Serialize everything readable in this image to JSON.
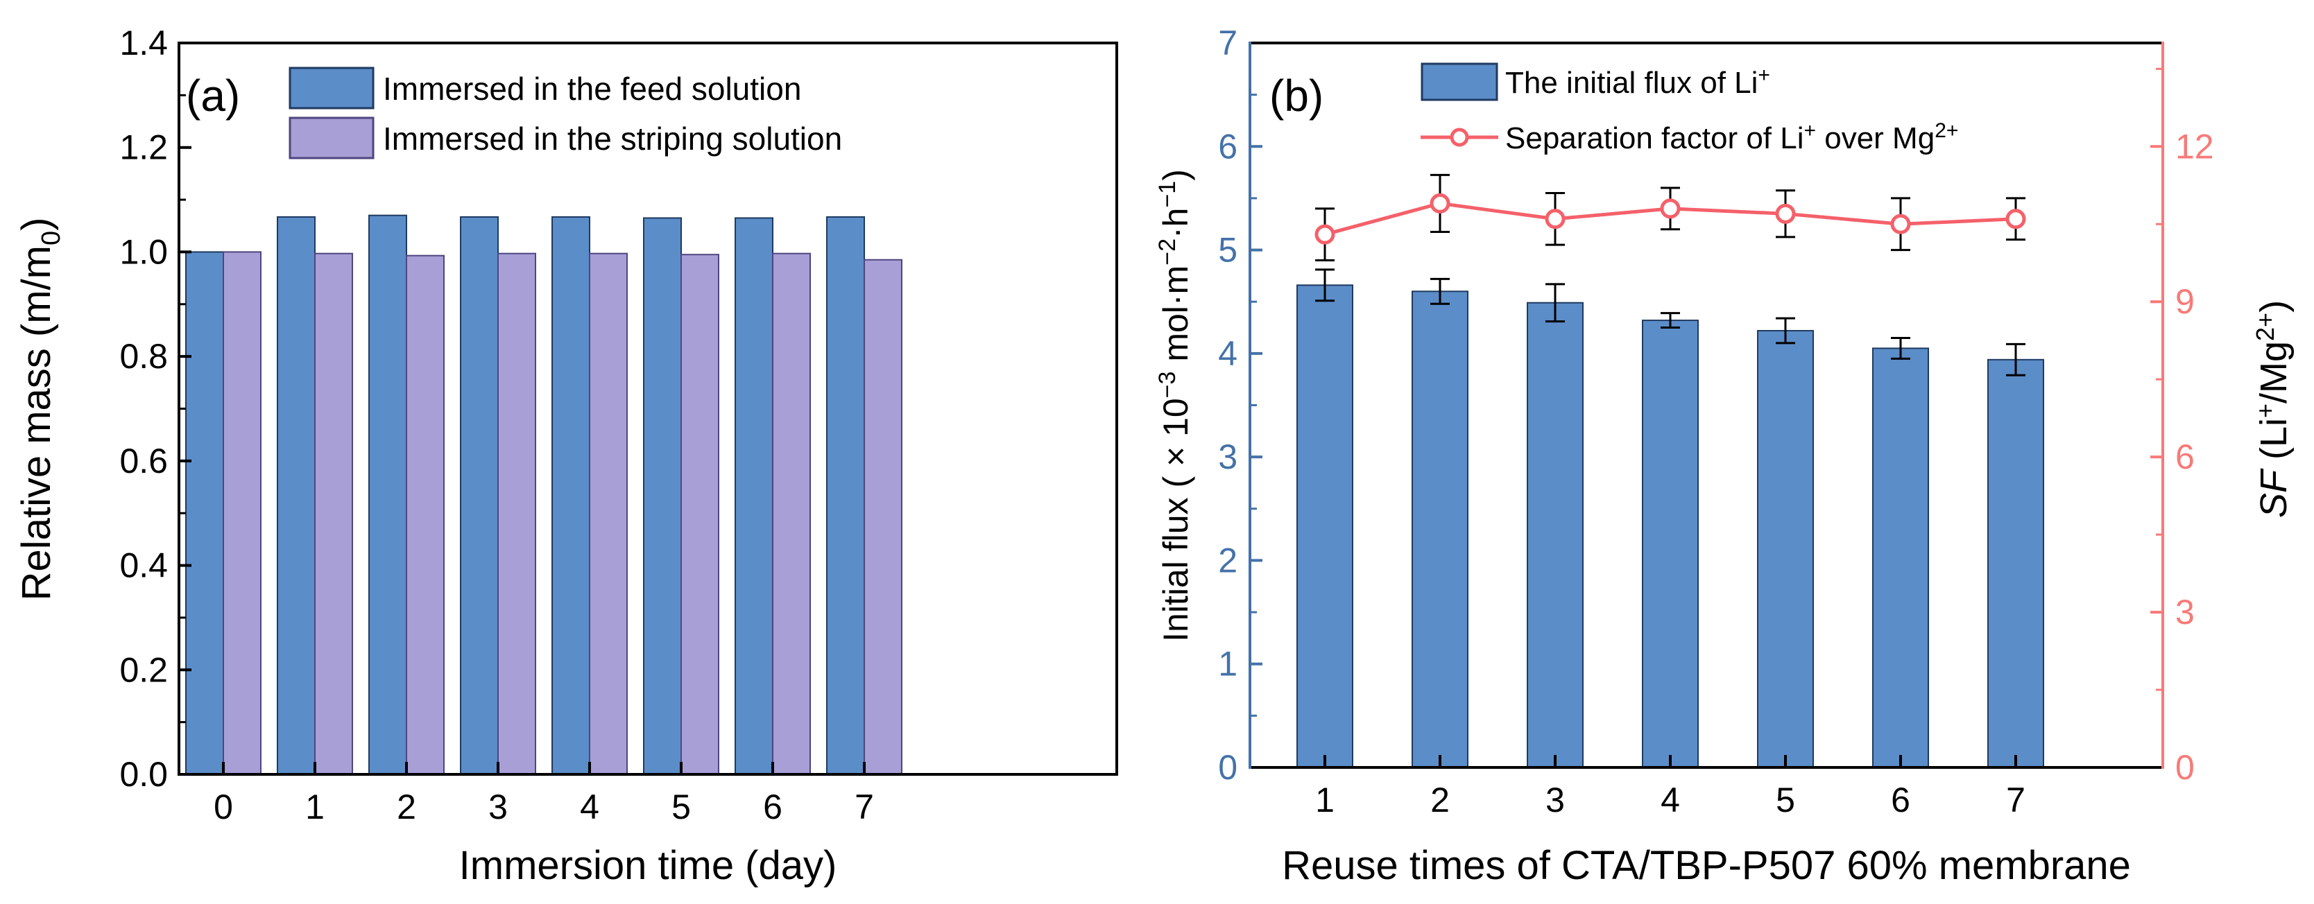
{
  "colors": {
    "axis": "#000000",
    "blue_axis": "#4472a8",
    "red_axis": "#f77a78",
    "bar_feed": "#5b8dc8",
    "bar_strip": "#a79fd6",
    "bar_flux": "#5b8dc8",
    "sf_line": "#f5606a"
  },
  "chart_data": [
    {
      "type": "bar",
      "panel_label": "(a)",
      "title": "",
      "xlabel": "Immersion time (day)",
      "ylabel": "Relative mass (m/m",
      "ylabel_sub": "0",
      "ylabel_end": ")",
      "categories": [
        "0",
        "1",
        "2",
        "3",
        "4",
        "5",
        "6",
        "7"
      ],
      "ylim": [
        0,
        1.4
      ],
      "yticks": [
        "0.0",
        "0.2",
        "0.4",
        "0.6",
        "0.8",
        "1.0",
        "1.2",
        "1.4"
      ],
      "series": [
        {
          "name": "Immersed in the feed solution",
          "values": [
            1.0,
            1.067,
            1.07,
            1.067,
            1.067,
            1.065,
            1.065,
            1.067
          ]
        },
        {
          "name": "Immersed in the striping solution",
          "values": [
            1.0,
            0.997,
            0.993,
            0.997,
            0.997,
            0.995,
            0.997,
            0.985
          ]
        }
      ],
      "legend_position": "top-left"
    },
    {
      "type": "bar+line",
      "panel_label": "(b)",
      "title": "",
      "xlabel": "Reuse times of CTA/TBP-P507 60% membrane",
      "ylabel_left": {
        "pre": "Initial flux ( × 10",
        "e1": "−3",
        "mid1": " mol·m",
        "e2": "−2",
        "mid2": "·h",
        "e3": "−1",
        "end": ")"
      },
      "ylabel_right": {
        "italic": "SF",
        "pre": " (Li",
        "e1": "+",
        "mid": "/Mg",
        "e2": "2+",
        "end": ")"
      },
      "categories": [
        "1",
        "2",
        "3",
        "4",
        "5",
        "6",
        "7"
      ],
      "ylim_left": [
        0,
        7
      ],
      "yticks_left": [
        "0",
        "1",
        "2",
        "3",
        "4",
        "5",
        "6",
        "7"
      ],
      "ylim_right": [
        0,
        14
      ],
      "yticks_right": [
        "0",
        "3",
        "6",
        "9",
        "12"
      ],
      "flux": {
        "name": "The initial flux of Li",
        "name_sup": "+",
        "values": [
          4.66,
          4.6,
          4.49,
          4.32,
          4.22,
          4.05,
          3.94
        ],
        "errors": [
          0.15,
          0.12,
          0.18,
          0.07,
          0.12,
          0.1,
          0.15
        ]
      },
      "sf": {
        "name_pre": "Separation factor of Li",
        "name_sup1": "+",
        "name_mid": " over Mg",
        "name_sup2": "2+",
        "values": [
          10.3,
          10.9,
          10.6,
          10.8,
          10.7,
          10.5,
          10.6
        ],
        "errors": [
          0.5,
          0.55,
          0.5,
          0.4,
          0.45,
          0.5,
          0.4
        ]
      },
      "legend_position": "top-center"
    }
  ]
}
